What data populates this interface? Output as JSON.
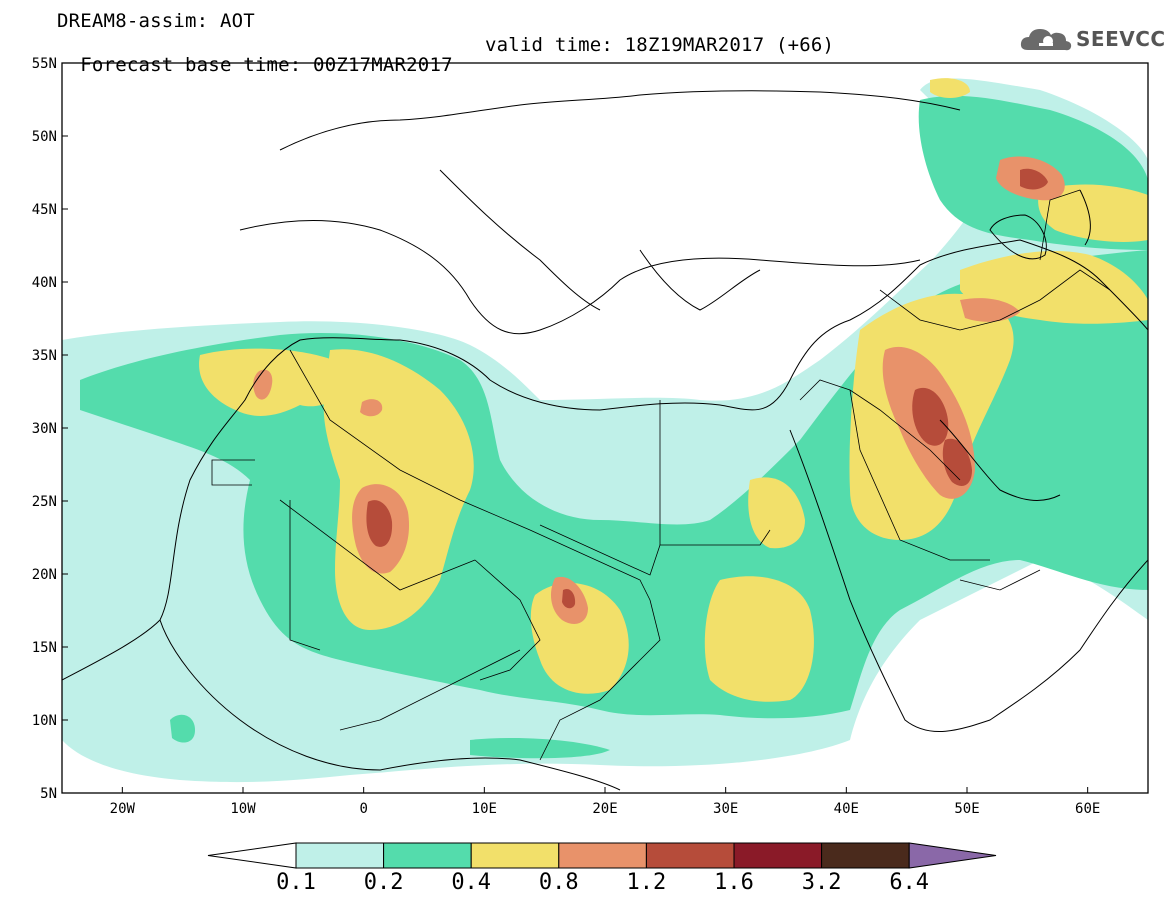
{
  "header": {
    "line1": "DREAM8-assim: AOT",
    "line2_base": "Forecast base time: 00Z17MAR2017",
    "line2_valid": "valid time: 18Z19MAR2017 (+66)"
  },
  "logo": {
    "text": "SEEVCCC",
    "icon": "cloud-icon"
  },
  "map": {
    "lon_range": [
      -25,
      65
    ],
    "lat_range": [
      5,
      55
    ],
    "lat_ticks": [
      "55N",
      "50N",
      "45N",
      "40N",
      "35N",
      "30N",
      "25N",
      "20N",
      "15N",
      "10N",
      "5N"
    ],
    "lon_ticks": [
      "20W",
      "10W",
      "0",
      "10E",
      "20E",
      "30E",
      "40E",
      "50E",
      "60E"
    ]
  },
  "colorbar": {
    "labels": [
      "0.1",
      "0.2",
      "0.4",
      "0.8",
      "1.2",
      "1.6",
      "3.2",
      "6.4"
    ],
    "colors": {
      "c01": "#bff0e8",
      "c02": "#54dcac",
      "c04": "#f2e06a",
      "c08": "#e8926a",
      "c12": "#b64c3a",
      "c16": "#8a1a28",
      "c32": "#4a2a1c",
      "c64": "#8a68a8"
    }
  }
}
